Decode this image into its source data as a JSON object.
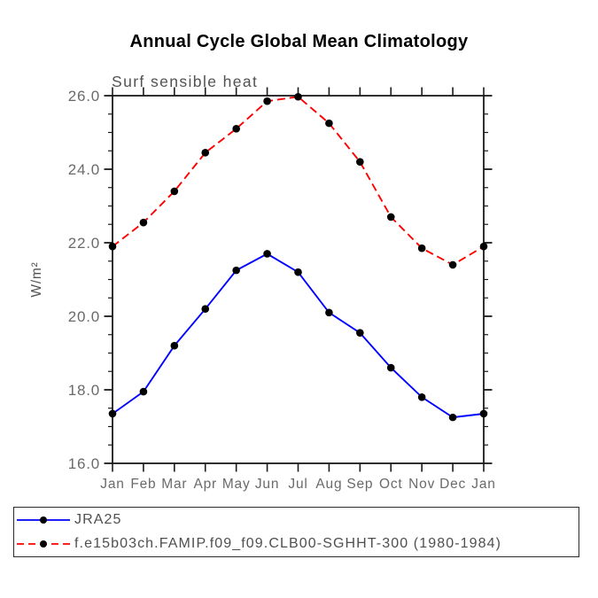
{
  "title": "Annual Cycle Global Mean Climatology",
  "chart_data": {
    "type": "line",
    "subtitle": "Surf sensible heat",
    "xlabel": "",
    "ylabel": "W/m²",
    "categories": [
      "Jan",
      "Feb",
      "Mar",
      "Apr",
      "May",
      "Jun",
      "Jul",
      "Aug",
      "Sep",
      "Oct",
      "Nov",
      "Dec",
      "Jan"
    ],
    "ylim": [
      16.0,
      26.0
    ],
    "ytick_major_step": 2.0,
    "ytick_minor_step": 0.5,
    "ytick_labels": [
      "16.0",
      "18.0",
      "20.0",
      "22.0",
      "24.0",
      "26.0"
    ],
    "grid": false,
    "legend_position": "bottom-left-box",
    "series": [
      {
        "name": "JRA25",
        "color": "#0000ff",
        "line_style": "solid",
        "marker": "black-dot",
        "values": [
          17.35,
          17.95,
          19.2,
          20.2,
          21.25,
          21.7,
          21.2,
          20.1,
          19.55,
          18.6,
          17.8,
          17.25,
          17.35
        ]
      },
      {
        "name": "f.e15b03ch.FAMIP.f09_f09.CLB00-SGHHT-300 (1980-1984)",
        "color": "#ff0000",
        "line_style": "dashed",
        "marker": "black-dot",
        "values": [
          21.9,
          22.55,
          23.4,
          24.45,
          25.1,
          25.85,
          25.97,
          25.25,
          24.2,
          22.7,
          21.85,
          21.4,
          21.9
        ]
      }
    ]
  },
  "colors": {
    "axis": "#1a1a1a",
    "tick_label": "#6a6a6a",
    "subtitle_text": "#525252",
    "marker": "#000000",
    "legend_text": "#4f4f4f"
  }
}
